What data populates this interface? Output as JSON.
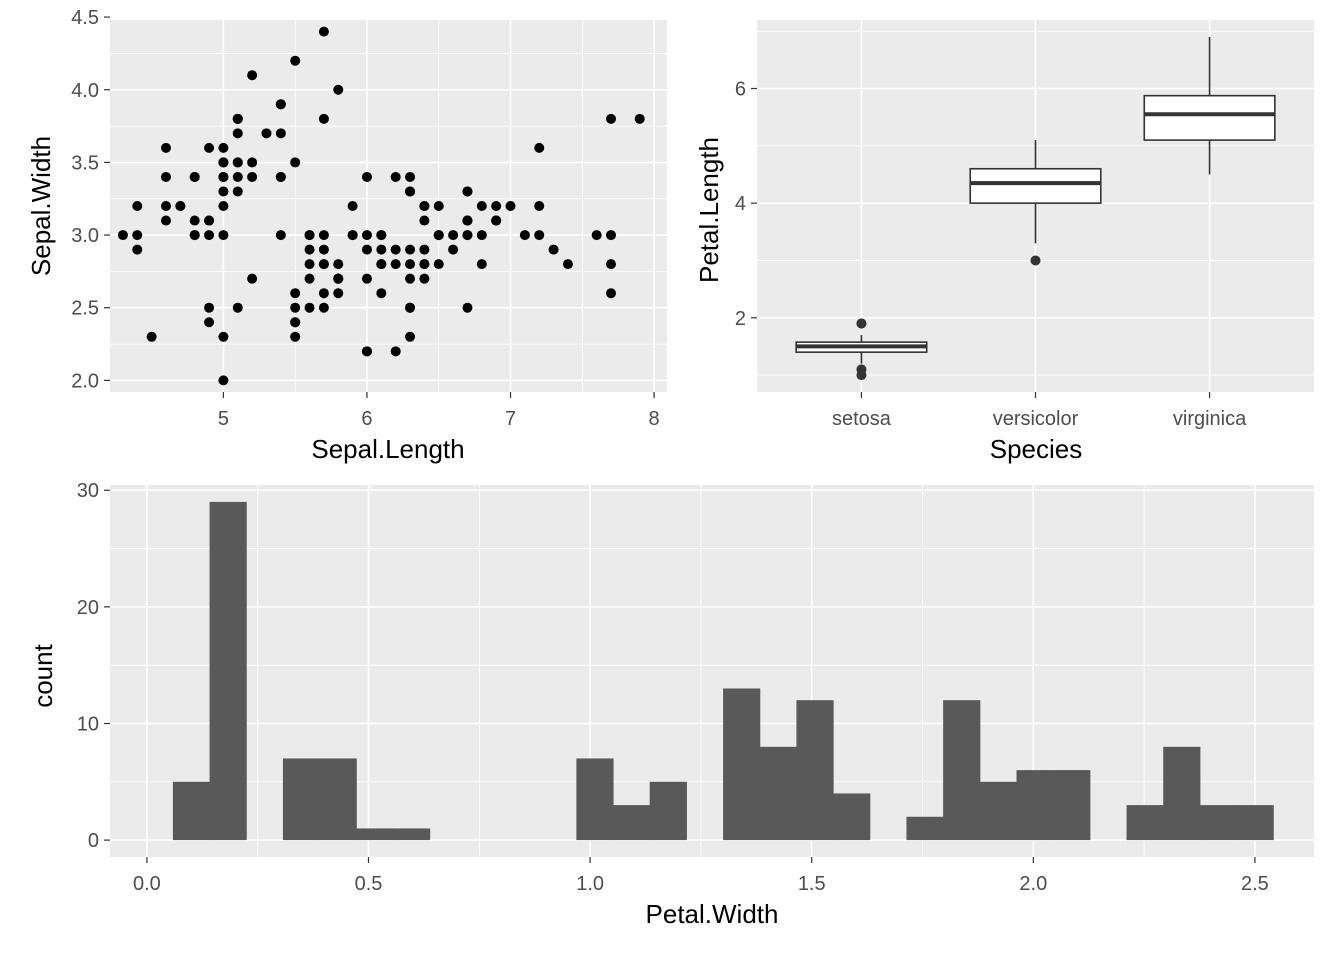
{
  "colors": {
    "panel_background": "#ebebeb",
    "grid": "#ffffff",
    "point": "#000000",
    "box_outline": "#333333",
    "box_fill": "#ffffff",
    "bar": "#595959",
    "tick_label": "#4d4d4d"
  },
  "chart_data": [
    {
      "type": "scatter",
      "xlabel": "Sepal.Length",
      "ylabel": "Sepal.Width",
      "xlim": [
        4.21,
        8.09
      ],
      "ylim": [
        1.92,
        4.48
      ],
      "x_ticks": [
        5,
        6,
        7,
        8
      ],
      "y_ticks": [
        2.0,
        2.5,
        3.0,
        3.5,
        4.0,
        4.5
      ],
      "x_tick_labels": [
        "5",
        "6",
        "7",
        "8"
      ],
      "y_tick_labels": [
        "2.0",
        "2.5",
        "3.0",
        "3.5",
        "4.0",
        "4.5"
      ],
      "grid": true,
      "points": [
        [
          5.1,
          3.5
        ],
        [
          4.9,
          3.0
        ],
        [
          4.7,
          3.2
        ],
        [
          4.6,
          3.1
        ],
        [
          5.0,
          3.6
        ],
        [
          5.4,
          3.9
        ],
        [
          4.6,
          3.4
        ],
        [
          5.0,
          3.4
        ],
        [
          4.4,
          2.9
        ],
        [
          4.9,
          3.1
        ],
        [
          5.4,
          3.7
        ],
        [
          4.8,
          3.4
        ],
        [
          4.8,
          3.0
        ],
        [
          4.3,
          3.0
        ],
        [
          5.8,
          4.0
        ],
        [
          5.7,
          4.4
        ],
        [
          5.4,
          3.9
        ],
        [
          5.1,
          3.5
        ],
        [
          5.7,
          3.8
        ],
        [
          5.1,
          3.8
        ],
        [
          5.4,
          3.4
        ],
        [
          5.1,
          3.7
        ],
        [
          4.6,
          3.6
        ],
        [
          5.1,
          3.3
        ],
        [
          4.8,
          3.4
        ],
        [
          5.0,
          3.0
        ],
        [
          5.0,
          3.4
        ],
        [
          5.2,
          3.5
        ],
        [
          5.2,
          3.4
        ],
        [
          4.7,
          3.2
        ],
        [
          4.8,
          3.1
        ],
        [
          5.4,
          3.4
        ],
        [
          5.2,
          4.1
        ],
        [
          5.5,
          4.2
        ],
        [
          4.9,
          3.1
        ],
        [
          5.0,
          3.2
        ],
        [
          5.5,
          3.5
        ],
        [
          4.9,
          3.6
        ],
        [
          4.4,
          3.0
        ],
        [
          5.1,
          3.4
        ],
        [
          5.0,
          3.5
        ],
        [
          4.5,
          2.3
        ],
        [
          4.4,
          3.2
        ],
        [
          5.0,
          3.5
        ],
        [
          5.1,
          3.8
        ],
        [
          4.8,
          3.0
        ],
        [
          5.1,
          3.8
        ],
        [
          4.6,
          3.2
        ],
        [
          5.3,
          3.7
        ],
        [
          5.0,
          3.3
        ],
        [
          7.0,
          3.2
        ],
        [
          6.4,
          3.2
        ],
        [
          6.9,
          3.1
        ],
        [
          5.5,
          2.3
        ],
        [
          6.5,
          2.8
        ],
        [
          5.7,
          2.8
        ],
        [
          6.3,
          3.3
        ],
        [
          4.9,
          2.4
        ],
        [
          6.6,
          2.9
        ],
        [
          5.2,
          2.7
        ],
        [
          5.0,
          2.0
        ],
        [
          5.9,
          3.0
        ],
        [
          6.0,
          2.2
        ],
        [
          6.1,
          2.9
        ],
        [
          5.6,
          2.9
        ],
        [
          6.7,
          3.1
        ],
        [
          5.6,
          3.0
        ],
        [
          5.8,
          2.7
        ],
        [
          6.2,
          2.2
        ],
        [
          5.6,
          2.5
        ],
        [
          5.9,
          3.2
        ],
        [
          6.1,
          2.8
        ],
        [
          6.3,
          2.5
        ],
        [
          6.1,
          2.8
        ],
        [
          6.4,
          2.9
        ],
        [
          6.6,
          3.0
        ],
        [
          6.8,
          2.8
        ],
        [
          6.7,
          3.0
        ],
        [
          6.0,
          2.9
        ],
        [
          5.7,
          2.6
        ],
        [
          5.5,
          2.4
        ],
        [
          5.5,
          2.4
        ],
        [
          5.8,
          2.7
        ],
        [
          6.0,
          2.7
        ],
        [
          5.4,
          3.0
        ],
        [
          6.0,
          3.4
        ],
        [
          6.7,
          3.1
        ],
        [
          6.3,
          2.3
        ],
        [
          5.6,
          3.0
        ],
        [
          5.5,
          2.5
        ],
        [
          5.5,
          2.6
        ],
        [
          6.1,
          3.0
        ],
        [
          5.8,
          2.6
        ],
        [
          5.0,
          2.3
        ],
        [
          5.6,
          2.7
        ],
        [
          5.7,
          3.0
        ],
        [
          5.7,
          2.9
        ],
        [
          6.2,
          2.9
        ],
        [
          5.1,
          2.5
        ],
        [
          5.7,
          2.8
        ],
        [
          6.3,
          3.3
        ],
        [
          5.8,
          2.7
        ],
        [
          7.1,
          3.0
        ],
        [
          6.3,
          2.9
        ],
        [
          6.5,
          3.0
        ],
        [
          7.6,
          3.0
        ],
        [
          4.9,
          2.5
        ],
        [
          7.3,
          2.9
        ],
        [
          6.7,
          2.5
        ],
        [
          7.2,
          3.6
        ],
        [
          6.5,
          3.2
        ],
        [
          6.4,
          2.7
        ],
        [
          6.8,
          3.0
        ],
        [
          5.7,
          2.5
        ],
        [
          5.8,
          2.8
        ],
        [
          6.4,
          3.2
        ],
        [
          6.5,
          3.0
        ],
        [
          7.7,
          3.8
        ],
        [
          7.7,
          2.6
        ],
        [
          6.0,
          2.2
        ],
        [
          6.9,
          3.2
        ],
        [
          5.6,
          2.8
        ],
        [
          7.7,
          2.8
        ],
        [
          6.3,
          2.7
        ],
        [
          6.7,
          3.3
        ],
        [
          7.2,
          3.2
        ],
        [
          6.2,
          2.8
        ],
        [
          6.1,
          3.0
        ],
        [
          6.4,
          2.8
        ],
        [
          7.2,
          3.0
        ],
        [
          7.4,
          2.8
        ],
        [
          7.9,
          3.8
        ],
        [
          6.4,
          2.8
        ],
        [
          6.3,
          2.8
        ],
        [
          6.1,
          2.6
        ],
        [
          7.7,
          3.0
        ],
        [
          6.3,
          3.4
        ],
        [
          6.4,
          3.1
        ],
        [
          6.0,
          3.0
        ],
        [
          6.9,
          3.1
        ],
        [
          6.7,
          3.1
        ],
        [
          6.9,
          3.1
        ],
        [
          5.8,
          2.7
        ],
        [
          6.8,
          3.2
        ],
        [
          6.7,
          3.3
        ],
        [
          6.7,
          3.0
        ],
        [
          6.3,
          2.5
        ],
        [
          6.5,
          3.0
        ],
        [
          6.2,
          3.4
        ],
        [
          5.9,
          3.0
        ]
      ]
    },
    {
      "type": "box",
      "xlabel": "Species",
      "ylabel": "Petal.Length",
      "categories": [
        "setosa",
        "versicolor",
        "virginica"
      ],
      "ylim": [
        0.705,
        7.195
      ],
      "y_ticks": [
        2,
        4,
        6
      ],
      "y_tick_labels": [
        "2",
        "4",
        "6"
      ],
      "grid": true,
      "boxes": [
        {
          "lower_whisker": 1.2,
          "q1": 1.4,
          "median": 1.5,
          "q3": 1.575,
          "upper_whisker": 1.7,
          "outliers": [
            1.0,
            1.1,
            1.9,
            1.9
          ]
        },
        {
          "lower_whisker": 3.3,
          "q1": 4.0,
          "median": 4.35,
          "q3": 4.6,
          "upper_whisker": 5.1,
          "outliers": [
            3.0
          ]
        },
        {
          "lower_whisker": 4.5,
          "q1": 5.1,
          "median": 5.55,
          "q3": 5.875,
          "upper_whisker": 6.9,
          "outliers": []
        }
      ]
    },
    {
      "type": "histogram",
      "xlabel": "Petal.Width",
      "ylabel": "count",
      "xlim": [
        -0.0833,
        2.6333
      ],
      "ylim": [
        -1.45,
        30.45
      ],
      "x_ticks": [
        0.0,
        0.5,
        1.0,
        1.5,
        2.0,
        2.5
      ],
      "y_ticks": [
        0,
        10,
        20,
        30
      ],
      "x_tick_labels": [
        "0.0",
        "0.5",
        "1.0",
        "1.5",
        "2.0",
        "2.5"
      ],
      "y_tick_labels": [
        "0",
        "10",
        "20",
        "30"
      ],
      "grid": true,
      "bins": 30,
      "bin_width": 0.08275862,
      "first_bin_center": 0.1,
      "counts": [
        5,
        29,
        0,
        7,
        7,
        1,
        1,
        0,
        0,
        0,
        0,
        7,
        3,
        5,
        0,
        13,
        8,
        12,
        4,
        0,
        2,
        12,
        5,
        6,
        6,
        0,
        3,
        8,
        3,
        3
      ]
    }
  ]
}
